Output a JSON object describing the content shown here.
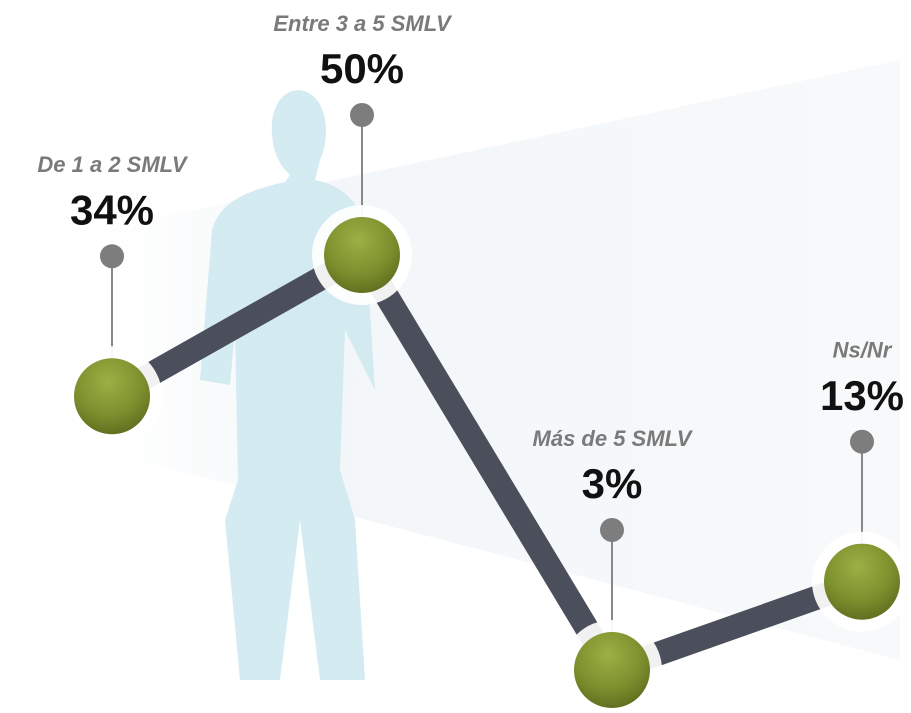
{
  "chart_data": {
    "type": "line",
    "categories": [
      "De 1 a 2 SMLV",
      "Entre 3 a 5 SMLV",
      "Más de 5 SMLV",
      "Ns/Nr"
    ],
    "values": [
      34,
      50,
      3,
      13
    ],
    "value_labels": [
      "34%",
      "50%",
      "3%",
      "13%"
    ],
    "color": "#4b4e5b"
  }
}
